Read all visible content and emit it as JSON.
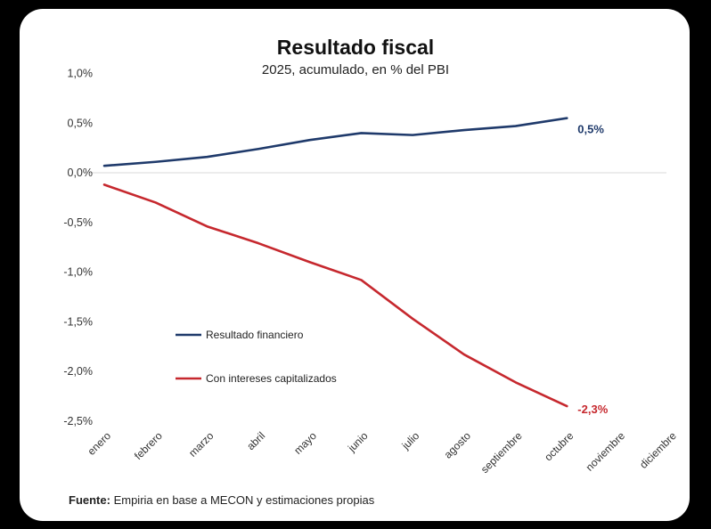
{
  "chart_data": {
    "type": "line",
    "title": "Resultado fiscal",
    "subtitle": "2025, acumulado, en % del PBI",
    "xlabel": "",
    "ylabel": "",
    "categories": [
      "enero",
      "febrero",
      "marzo",
      "abril",
      "mayo",
      "junio",
      "julio",
      "agosto",
      "septiembre",
      "octubre",
      "noviembre",
      "diciembre"
    ],
    "ylim": [
      -2.5,
      1.0
    ],
    "yticks": [
      1.0,
      0.5,
      0.0,
      -0.5,
      -1.0,
      -1.5,
      -2.0,
      -2.5
    ],
    "ytick_labels": [
      "1,0%",
      "0,5%",
      "0,0%",
      "-0,5%",
      "-1,0%",
      "-1,5%",
      "-2,0%",
      "-2,5%"
    ],
    "grid": false,
    "zero_line": true,
    "legend_position": "left-lower",
    "series": [
      {
        "name": "Resultado financiero",
        "color": "#1f3a6b",
        "values": [
          0.07,
          0.11,
          0.16,
          0.24,
          0.33,
          0.4,
          0.38,
          0.43,
          0.47,
          0.55,
          null,
          null
        ],
        "end_label": "0,5%"
      },
      {
        "name": "Con intereses capitalizados",
        "color": "#c6282e",
        "values": [
          -0.12,
          -0.3,
          -0.54,
          -0.71,
          -0.9,
          -1.08,
          -1.47,
          -1.83,
          -2.11,
          -2.35,
          null,
          null
        ],
        "end_label": "-2,3%"
      }
    ]
  },
  "source": {
    "label": "Fuente:",
    "text": "Empiria en base a MECON y estimaciones propias"
  }
}
